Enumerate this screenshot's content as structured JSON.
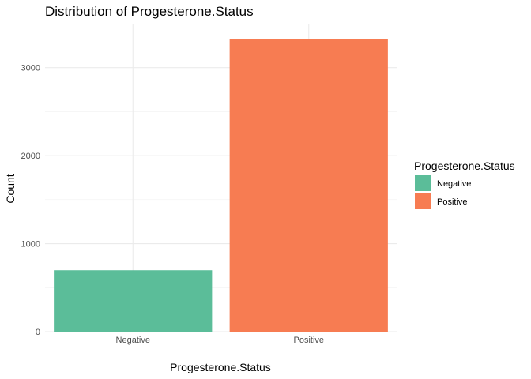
{
  "chart_data": {
    "type": "bar",
    "title": "Distribution of Progesterone.Status",
    "xlabel": "Progesterone.Status",
    "ylabel": "Count",
    "categories": [
      "Negative",
      "Positive"
    ],
    "values": [
      698,
      3326
    ],
    "colors": [
      "#5bbd99",
      "#f77c52"
    ],
    "ylim": [
      0,
      3500
    ],
    "yticks": [
      0,
      1000,
      2000,
      3000
    ],
    "ytick_labels": [
      "0",
      "1000",
      "2000",
      "3000"
    ],
    "grid": true,
    "legend": {
      "title": "Progesterone.Status",
      "position": "right",
      "entries": [
        "Negative",
        "Positive"
      ]
    }
  }
}
